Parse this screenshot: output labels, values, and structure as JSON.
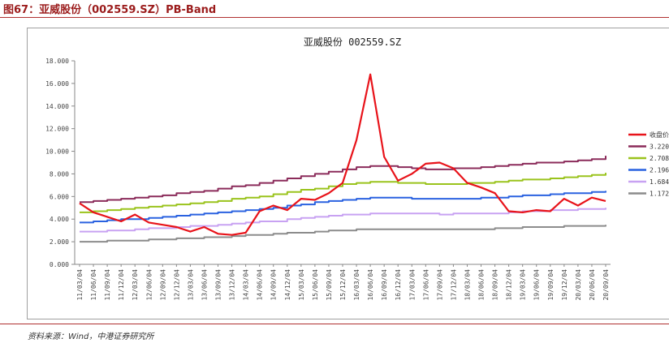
{
  "figure_title": "图67：亚威股份（002559.SZ）PB-Band",
  "source_note": "资料来源：Wind，中港证券研究所",
  "colors": {
    "accent": "#9b1b1b"
  },
  "chart_data": {
    "type": "line",
    "title": "亚威股份 002559.SZ",
    "xlabel": "",
    "ylabel": "",
    "ylim": [
      0,
      18
    ],
    "y_ticks": [
      "0.000",
      "2.000",
      "4.000",
      "6.000",
      "8.000",
      "10.000",
      "12.000",
      "14.000",
      "16.000",
      "18.000"
    ],
    "x_ticks": [
      "11/03/04",
      "11/06/04",
      "11/09/04",
      "11/12/04",
      "12/03/04",
      "12/06/04",
      "12/09/04",
      "12/12/04",
      "13/03/04",
      "13/06/04",
      "13/09/04",
      "13/12/04",
      "14/03/04",
      "14/06/04",
      "14/09/04",
      "14/12/04",
      "15/03/04",
      "15/06/04",
      "15/09/04",
      "15/12/04",
      "16/03/04",
      "16/06/04",
      "16/09/04",
      "16/12/04",
      "17/03/04",
      "17/06/04",
      "17/09/04",
      "17/12/04",
      "18/03/04",
      "18/06/04",
      "18/09/04",
      "18/12/04",
      "19/03/04",
      "19/06/04",
      "19/09/04",
      "19/12/04",
      "20/03/04",
      "20/06/04",
      "20/09/04"
    ],
    "legend_position": "right",
    "grid": false,
    "series": [
      {
        "name": "收盘价",
        "color": "#e8131a",
        "values": [
          5.4,
          4.6,
          4.2,
          3.8,
          4.4,
          3.7,
          3.5,
          3.3,
          2.9,
          3.3,
          2.7,
          2.6,
          2.8,
          4.7,
          5.2,
          4.8,
          5.8,
          5.7,
          6.3,
          7.2,
          11.0,
          16.8,
          9.5,
          7.4,
          8.0,
          8.9,
          9.0,
          8.5,
          7.2,
          6.8,
          6.3,
          4.7,
          4.6,
          4.8,
          4.7,
          5.8,
          5.2,
          5.9,
          5.6
        ]
      },
      {
        "name": "3.220",
        "color": "#8b2b5a",
        "values": [
          5.5,
          5.6,
          5.7,
          5.8,
          5.9,
          6.0,
          6.1,
          6.3,
          6.4,
          6.5,
          6.7,
          6.9,
          7.0,
          7.2,
          7.4,
          7.6,
          7.8,
          8.0,
          8.2,
          8.4,
          8.6,
          8.7,
          8.7,
          8.6,
          8.5,
          8.4,
          8.4,
          8.5,
          8.5,
          8.6,
          8.7,
          8.8,
          8.9,
          9.0,
          9.0,
          9.1,
          9.2,
          9.3,
          9.6
        ]
      },
      {
        "name": "2.708",
        "color": "#9ac31c",
        "values": [
          4.6,
          4.7,
          4.8,
          4.9,
          5.0,
          5.1,
          5.2,
          5.3,
          5.4,
          5.5,
          5.6,
          5.8,
          5.9,
          6.0,
          6.2,
          6.4,
          6.6,
          6.7,
          6.9,
          7.1,
          7.2,
          7.3,
          7.3,
          7.2,
          7.2,
          7.1,
          7.1,
          7.1,
          7.2,
          7.2,
          7.3,
          7.4,
          7.5,
          7.5,
          7.6,
          7.7,
          7.8,
          7.9,
          8.1
        ]
      },
      {
        "name": "2.196",
        "color": "#2a62e0",
        "values": [
          3.7,
          3.8,
          3.9,
          4.0,
          4.0,
          4.1,
          4.2,
          4.3,
          4.4,
          4.5,
          4.6,
          4.7,
          4.8,
          4.9,
          5.0,
          5.2,
          5.3,
          5.5,
          5.6,
          5.7,
          5.8,
          5.9,
          5.9,
          5.9,
          5.8,
          5.8,
          5.8,
          5.8,
          5.8,
          5.9,
          5.9,
          6.0,
          6.1,
          6.1,
          6.2,
          6.3,
          6.3,
          6.4,
          6.5
        ]
      },
      {
        "name": "1.684",
        "color": "#c8a2f2",
        "values": [
          2.9,
          2.9,
          3.0,
          3.0,
          3.1,
          3.2,
          3.2,
          3.3,
          3.4,
          3.4,
          3.5,
          3.6,
          3.7,
          3.8,
          3.8,
          4.0,
          4.1,
          4.2,
          4.3,
          4.4,
          4.4,
          4.5,
          4.5,
          4.5,
          4.5,
          4.5,
          4.4,
          4.5,
          4.5,
          4.5,
          4.5,
          4.6,
          4.7,
          4.7,
          4.8,
          4.8,
          4.9,
          4.9,
          5.0
        ]
      },
      {
        "name": "1.172",
        "color": "#8c8c8c",
        "values": [
          2.0,
          2.0,
          2.1,
          2.1,
          2.1,
          2.2,
          2.2,
          2.3,
          2.3,
          2.4,
          2.4,
          2.5,
          2.6,
          2.6,
          2.7,
          2.8,
          2.8,
          2.9,
          3.0,
          3.0,
          3.1,
          3.1,
          3.1,
          3.1,
          3.1,
          3.1,
          3.1,
          3.1,
          3.1,
          3.1,
          3.2,
          3.2,
          3.3,
          3.3,
          3.3,
          3.4,
          3.4,
          3.4,
          3.5
        ]
      }
    ]
  }
}
